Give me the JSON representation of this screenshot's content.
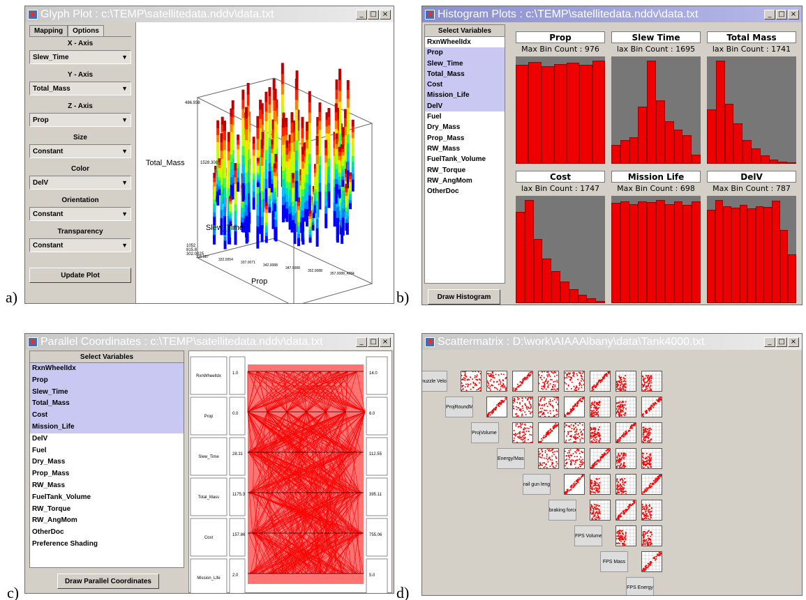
{
  "labels": {
    "a": "a)",
    "b": "b)",
    "c": "c)",
    "d": "d)"
  },
  "glyph": {
    "title": "Glyph Plot : c:\\TEMP\\satellitedata.nddv\\data.txt",
    "tabs": [
      "Mapping",
      "Options"
    ],
    "groups": [
      {
        "header": "X - Axis",
        "value": "Slew_Time"
      },
      {
        "header": "Y - Axis",
        "value": "Total_Mass"
      },
      {
        "header": "Z - Axis",
        "value": "Prop"
      },
      {
        "header": "Size",
        "value": "Constant"
      },
      {
        "header": "Color",
        "value": "DelV"
      },
      {
        "header": "Orientation",
        "value": "Constant"
      },
      {
        "header": "Transparency",
        "value": "Constant"
      }
    ],
    "update_label": "Update Plot",
    "plot": {
      "ylabel": "Total_Mass",
      "zlabel": "Slew_Time",
      "xlabel": "Prop",
      "ytick_top": "486.938",
      "ytick_mid": "1528.308",
      "zticks": [
        "1052",
        "815.8",
        "302.0025"
      ],
      "xticks": [
        "315.087",
        "332.0054",
        "337.0071",
        "342.0088",
        "347.0088",
        "352.0088",
        "357.0088_4284"
      ]
    }
  },
  "hist": {
    "title": "Histogram Plots : c:\\TEMP\\satellitedata.nddv\\data.txt",
    "select_header": "Select Variables",
    "variables": [
      {
        "name": "RxnWheelIdx",
        "selected": false
      },
      {
        "name": "Prop",
        "selected": true
      },
      {
        "name": "Slew_Time",
        "selected": true
      },
      {
        "name": "Total_Mass",
        "selected": true
      },
      {
        "name": "Cost",
        "selected": true
      },
      {
        "name": "Mission_Life",
        "selected": true
      },
      {
        "name": "DelV",
        "selected": true
      },
      {
        "name": "Fuel",
        "selected": false
      },
      {
        "name": "Dry_Mass",
        "selected": false
      },
      {
        "name": "Prop_Mass",
        "selected": false
      },
      {
        "name": "RW_Mass",
        "selected": false
      },
      {
        "name": "FuelTank_Volume",
        "selected": false
      },
      {
        "name": "RW_Torque",
        "selected": false
      },
      {
        "name": "RW_AngMom",
        "selected": false
      },
      {
        "name": "OtherDoc",
        "selected": false
      }
    ],
    "draw_label": "Draw Histogram",
    "charts": [
      {
        "title": "Prop",
        "subtitle": "Max Bin Count : 976",
        "values": [
          938,
          960,
          925,
          940,
          955,
          935,
          976
        ]
      },
      {
        "title": "Slew Time",
        "subtitle": "lax Bin Count : 1695",
        "values": [
          310,
          385,
          430,
          940,
          1695,
          1040,
          700,
          560,
          470,
          150
        ]
      },
      {
        "title": "Total Mass",
        "subtitle": "lax Bin Count : 1741",
        "values": [
          920,
          1741,
          1010,
          680,
          400,
          260,
          140,
          70,
          40,
          20
        ]
      },
      {
        "title": "Cost",
        "subtitle": "lax Bin Count : 1747",
        "values": [
          1550,
          1747,
          1090,
          760,
          540,
          370,
          240,
          140,
          80,
          40
        ]
      },
      {
        "title": "Mission Life",
        "subtitle": "Max Bin Count : 698",
        "values": [
          680,
          690,
          670,
          690,
          685,
          698,
          670,
          690,
          665,
          690
        ]
      },
      {
        "title": "DelV",
        "subtitle": "Max Bin Count : 787",
        "values": [
          715,
          787,
          740,
          730,
          750,
          725,
          740,
          735,
          780,
          560,
          370
        ]
      }
    ]
  },
  "pc": {
    "title": "Parallel Coordinates : c:\\TEMP\\satellitedata.nddv\\data.txt",
    "select_header": "Select Variables",
    "variables": [
      {
        "name": "RxnWheelIdx",
        "selected": true
      },
      {
        "name": "Prop",
        "selected": true
      },
      {
        "name": "Slew_Time",
        "selected": true
      },
      {
        "name": "Total_Mass",
        "selected": true
      },
      {
        "name": "Cost",
        "selected": true
      },
      {
        "name": "Mission_Life",
        "selected": true
      },
      {
        "name": "DelV",
        "selected": false
      },
      {
        "name": "Fuel",
        "selected": false
      },
      {
        "name": "Dry_Mass",
        "selected": false
      },
      {
        "name": "Prop_Mass",
        "selected": false
      },
      {
        "name": "RW_Mass",
        "selected": false
      },
      {
        "name": "FuelTank_Volume",
        "selected": false
      },
      {
        "name": "RW_Torque",
        "selected": false
      },
      {
        "name": "RW_AngMom",
        "selected": false
      },
      {
        "name": "OtherDoc",
        "selected": false
      },
      {
        "name": "Preference Shading",
        "selected": false
      }
    ],
    "draw_label": "Draw Parallel Coordinates",
    "axes": [
      {
        "name": "RxnWheelIdx",
        "min": "1.0",
        "max": "14.0"
      },
      {
        "name": "Prop",
        "min": "0.0",
        "max": "6.0"
      },
      {
        "name": "Slew_Time",
        "min": "28.31",
        "max": "112.55"
      },
      {
        "name": "Total_Mass",
        "min": "1175.3",
        "max": "395.11"
      },
      {
        "name": "Cost",
        "min": "157.86",
        "max": "755.06"
      },
      {
        "name": "Mission_Life",
        "min": "2.0",
        "max": "5.0"
      }
    ]
  },
  "sm": {
    "title": "Scattermatrix : D:\\work\\AIAAAlbany\\data\\Tank4000.txt",
    "variables": [
      "muzzle Velocity",
      "ProjRoundMass",
      "ProjVolume ratio",
      "Energy/Mass ratio",
      "rail gun length",
      "braking force",
      "FPS Volume",
      "FPS Mass",
      "FPS Energy"
    ]
  }
}
